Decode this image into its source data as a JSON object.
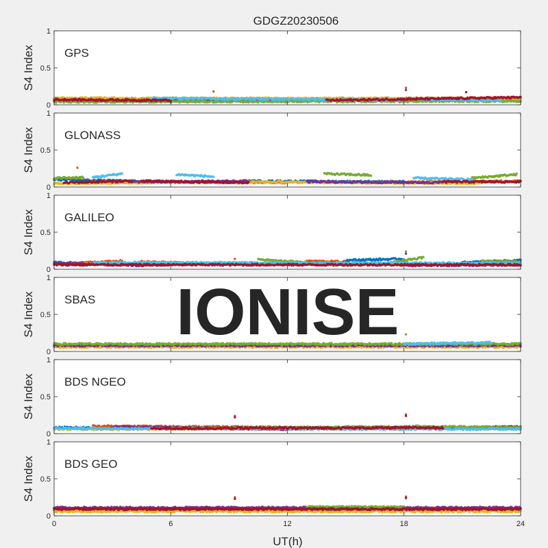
{
  "figure": {
    "title": "GDGZ20230506",
    "xlabel": "UT(h)",
    "watermark": "IONISE"
  },
  "colors": [
    "#0072BD",
    "#D95319",
    "#EDB120",
    "#7E2F8E",
    "#77AC30",
    "#4DBEEE",
    "#A2142F"
  ],
  "chart_data": [
    {
      "type": "scatter",
      "panel_label": "GPS",
      "ylabel": "S4 Index",
      "xlim": [
        0,
        24
      ],
      "ylim": [
        0,
        1
      ],
      "xticks": [
        0,
        6,
        12,
        18,
        24
      ],
      "yticks": [
        0,
        0.5,
        1
      ],
      "series": [
        {
          "color": "#0072BD",
          "segments": [
            [
              0.0,
              12.0,
              0.08,
              0.08
            ],
            [
              13.0,
              24.0,
              0.07,
              0.08
            ]
          ]
        },
        {
          "color": "#D95319",
          "segments": [
            [
              0.0,
              8.0,
              0.07,
              0.07
            ],
            [
              12.0,
              24.0,
              0.08,
              0.09
            ]
          ]
        },
        {
          "color": "#EDB120",
          "segments": [
            [
              0.0,
              24.0,
              0.09,
              0.08
            ]
          ]
        },
        {
          "color": "#7E2F8E",
          "segments": [
            [
              2.0,
              14.0,
              0.05,
              0.06
            ]
          ]
        },
        {
          "color": "#77AC30",
          "segments": [
            [
              0.0,
              24.0,
              0.04,
              0.05
            ]
          ]
        },
        {
          "color": "#4DBEEE",
          "segments": [
            [
              5.0,
              18.0,
              0.09,
              0.06
            ],
            [
              19.0,
              23.0,
              0.07,
              0.06
            ]
          ]
        },
        {
          "color": "#A2142F",
          "segments": [
            [
              0.0,
              6.0,
              0.07,
              0.06
            ],
            [
              14.0,
              24.0,
              0.06,
              0.1
            ]
          ]
        }
      ],
      "outliers": [
        {
          "x": 8.2,
          "y": 0.18,
          "color": "#D95319"
        },
        {
          "x": 18.1,
          "y": 0.23,
          "color": "#D95319"
        },
        {
          "x": 18.1,
          "y": 0.2,
          "color": "#7E2F8E"
        },
        {
          "x": 21.2,
          "y": 0.17,
          "color": "#A2142F"
        }
      ]
    },
    {
      "type": "scatter",
      "panel_label": "GLONASS",
      "ylabel": "S4 Index",
      "xlim": [
        0,
        24
      ],
      "ylim": [
        0,
        1
      ],
      "xticks": [
        0,
        6,
        12,
        18,
        24
      ],
      "yticks": [
        0,
        0.5,
        1
      ],
      "series": [
        {
          "color": "#0072BD",
          "segments": [
            [
              0.0,
              6.0,
              0.1,
              0.07
            ],
            [
              10.0,
              18.0,
              0.08,
              0.07
            ]
          ]
        },
        {
          "color": "#D95319",
          "segments": [
            [
              2.0,
              12.0,
              0.07,
              0.06
            ],
            [
              16.0,
              24.0,
              0.06,
              0.08
            ]
          ]
        },
        {
          "color": "#EDB120",
          "segments": [
            [
              0.0,
              5.0,
              0.05,
              0.06
            ],
            [
              9.0,
              22.0,
              0.07,
              0.05
            ]
          ]
        },
        {
          "color": "#7E2F8E",
          "segments": [
            [
              4.0,
              10.0,
              0.07,
              0.08
            ],
            [
              13.0,
              20.0,
              0.07,
              0.06
            ]
          ]
        },
        {
          "color": "#77AC30",
          "segments": [
            [
              0.0,
              1.5,
              0.12,
              0.13
            ],
            [
              13.9,
              16.3,
              0.18,
              0.16
            ],
            [
              21.5,
              23.8,
              0.12,
              0.17
            ]
          ]
        },
        {
          "color": "#4DBEEE",
          "segments": [
            [
              2.0,
              3.5,
              0.13,
              0.18
            ],
            [
              6.3,
              8.2,
              0.17,
              0.14
            ],
            [
              18.5,
              21.5,
              0.12,
              0.1
            ]
          ]
        },
        {
          "color": "#A2142F",
          "segments": [
            [
              0.5,
              4.0,
              0.06,
              0.08
            ],
            [
              4.5,
              10.0,
              0.08,
              0.06
            ],
            [
              20.0,
              24.0,
              0.07,
              0.07
            ]
          ]
        }
      ],
      "outliers": [
        {
          "x": 1.2,
          "y": 0.26,
          "color": "#D95319"
        }
      ]
    },
    {
      "type": "scatter",
      "panel_label": "GALILEO",
      "ylabel": "S4 Index",
      "xlim": [
        0,
        24
      ],
      "ylim": [
        0,
        1
      ],
      "xticks": [
        0,
        6,
        12,
        18,
        24
      ],
      "yticks": [
        0,
        0.5,
        1
      ],
      "series": [
        {
          "color": "#0072BD",
          "segments": [
            [
              0.0,
              2.5,
              0.09,
              0.08
            ],
            [
              15.0,
              18.0,
              0.12,
              0.14
            ],
            [
              21.0,
              24.0,
              0.09,
              0.12
            ]
          ]
        },
        {
          "color": "#D95319",
          "segments": [
            [
              1.0,
              3.5,
              0.08,
              0.11
            ],
            [
              4.5,
              9.0,
              0.1,
              0.07
            ],
            [
              13.0,
              15.0,
              0.11,
              0.1
            ]
          ]
        },
        {
          "color": "#EDB120",
          "segments": [
            [
              0.0,
              24.0,
              0.07,
              0.07
            ]
          ]
        },
        {
          "color": "#7E2F8E",
          "segments": [
            [
              0.0,
              4.0,
              0.08,
              0.06
            ],
            [
              4.0,
              9.0,
              0.05,
              0.08
            ],
            [
              18.0,
              24.0,
              0.05,
              0.06
            ]
          ]
        },
        {
          "color": "#77AC30",
          "segments": [
            [
              10.5,
              13.0,
              0.13,
              0.09
            ],
            [
              17.5,
              19.0,
              0.1,
              0.16
            ],
            [
              22.0,
              24.0,
              0.11,
              0.1
            ]
          ]
        },
        {
          "color": "#4DBEEE",
          "segments": [
            [
              2.0,
              24.0,
              0.09,
              0.08
            ]
          ]
        },
        {
          "color": "#A2142F",
          "segments": [
            [
              0.0,
              24.0,
              0.06,
              0.06
            ]
          ]
        }
      ],
      "outliers": [
        {
          "x": 9.3,
          "y": 0.14,
          "color": "#D95319"
        },
        {
          "x": 18.1,
          "y": 0.24,
          "color": "#77AC30"
        },
        {
          "x": 18.1,
          "y": 0.21,
          "color": "#7E2F8E"
        }
      ]
    },
    {
      "type": "scatter",
      "panel_label": "SBAS",
      "ylabel": "S4 Index",
      "xlim": [
        0,
        24
      ],
      "ylim": [
        0,
        1
      ],
      "xticks": [
        0,
        6,
        12,
        18,
        24
      ],
      "yticks": [
        0,
        0.5,
        1
      ],
      "series": [
        {
          "color": "#0072BD",
          "segments": [
            [
              0.0,
              24.0,
              0.09,
              0.09
            ]
          ]
        },
        {
          "color": "#EDB120",
          "segments": [
            [
              0.0,
              24.0,
              0.06,
              0.06
            ]
          ]
        },
        {
          "color": "#7E2F8E",
          "segments": [
            [
              0.0,
              24.0,
              0.08,
              0.08
            ]
          ]
        },
        {
          "color": "#77AC30",
          "segments": [
            [
              0.0,
              24.0,
              0.1,
              0.1
            ]
          ]
        },
        {
          "color": "#4DBEEE",
          "segments": [
            [
              18.0,
              22.5,
              0.1,
              0.12
            ]
          ]
        }
      ],
      "outliers": [
        {
          "x": 18.1,
          "y": 0.23,
          "color": "#77AC30"
        }
      ]
    },
    {
      "type": "scatter",
      "panel_label": "BDS NGEO",
      "ylabel": "S4 Index",
      "xlim": [
        0,
        24
      ],
      "ylim": [
        0,
        1
      ],
      "xticks": [
        0,
        6,
        12,
        18,
        24
      ],
      "yticks": [
        0,
        0.5,
        1
      ],
      "series": [
        {
          "color": "#0072BD",
          "segments": [
            [
              0.0,
              24.0,
              0.08,
              0.08
            ]
          ]
        },
        {
          "color": "#D95319",
          "segments": [
            [
              2.0,
              14.0,
              0.1,
              0.08
            ],
            [
              15.0,
              24.0,
              0.09,
              0.07
            ]
          ]
        },
        {
          "color": "#EDB120",
          "segments": [
            [
              0.0,
              24.0,
              0.06,
              0.07
            ]
          ]
        },
        {
          "color": "#7E2F8E",
          "segments": [
            [
              3.0,
              12.0,
              0.09,
              0.06
            ],
            [
              12.0,
              24.0,
              0.07,
              0.09
            ]
          ]
        },
        {
          "color": "#77AC30",
          "segments": [
            [
              6.0,
              18.0,
              0.07,
              0.09
            ],
            [
              18.0,
              24.0,
              0.1,
              0.08
            ]
          ]
        },
        {
          "color": "#4DBEEE",
          "segments": [
            [
              0.0,
              24.0,
              0.07,
              0.06
            ]
          ]
        },
        {
          "color": "#A2142F",
          "segments": [
            [
              5.0,
              20.0,
              0.07,
              0.08
            ]
          ]
        }
      ],
      "outliers": [
        {
          "x": 9.3,
          "y": 0.24,
          "color": "#D95319"
        },
        {
          "x": 9.3,
          "y": 0.22,
          "color": "#A2142F"
        },
        {
          "x": 18.1,
          "y": 0.26,
          "color": "#D95319"
        },
        {
          "x": 18.1,
          "y": 0.24,
          "color": "#A2142F"
        }
      ]
    },
    {
      "type": "scatter",
      "panel_label": "BDS GEO",
      "ylabel": "S4 Index",
      "xlim": [
        0,
        24
      ],
      "ylim": [
        0,
        1
      ],
      "xticks": [
        0,
        6,
        12,
        18,
        24
      ],
      "yticks": [
        0,
        0.5,
        1
      ],
      "series": [
        {
          "color": "#0072BD",
          "segments": [
            [
              0.0,
              24.0,
              0.08,
              0.08
            ]
          ]
        },
        {
          "color": "#D95319",
          "segments": [
            [
              0.0,
              24.0,
              0.1,
              0.1
            ]
          ]
        },
        {
          "color": "#EDB120",
          "segments": [
            [
              0.0,
              24.0,
              0.06,
              0.06
            ]
          ]
        },
        {
          "color": "#7E2F8E",
          "segments": [
            [
              0.0,
              24.0,
              0.11,
              0.11
            ]
          ]
        },
        {
          "color": "#77AC30",
          "segments": [
            [
              13.0,
              18.0,
              0.12,
              0.12
            ]
          ]
        },
        {
          "color": "#A2142F",
          "segments": [
            [
              0.0,
              24.0,
              0.09,
              0.09
            ]
          ]
        }
      ],
      "outliers": [
        {
          "x": 9.3,
          "y": 0.25,
          "color": "#D95319"
        },
        {
          "x": 9.3,
          "y": 0.23,
          "color": "#A2142F"
        },
        {
          "x": 18.1,
          "y": 0.26,
          "color": "#D95319"
        },
        {
          "x": 18.1,
          "y": 0.24,
          "color": "#A2142F"
        }
      ]
    }
  ]
}
